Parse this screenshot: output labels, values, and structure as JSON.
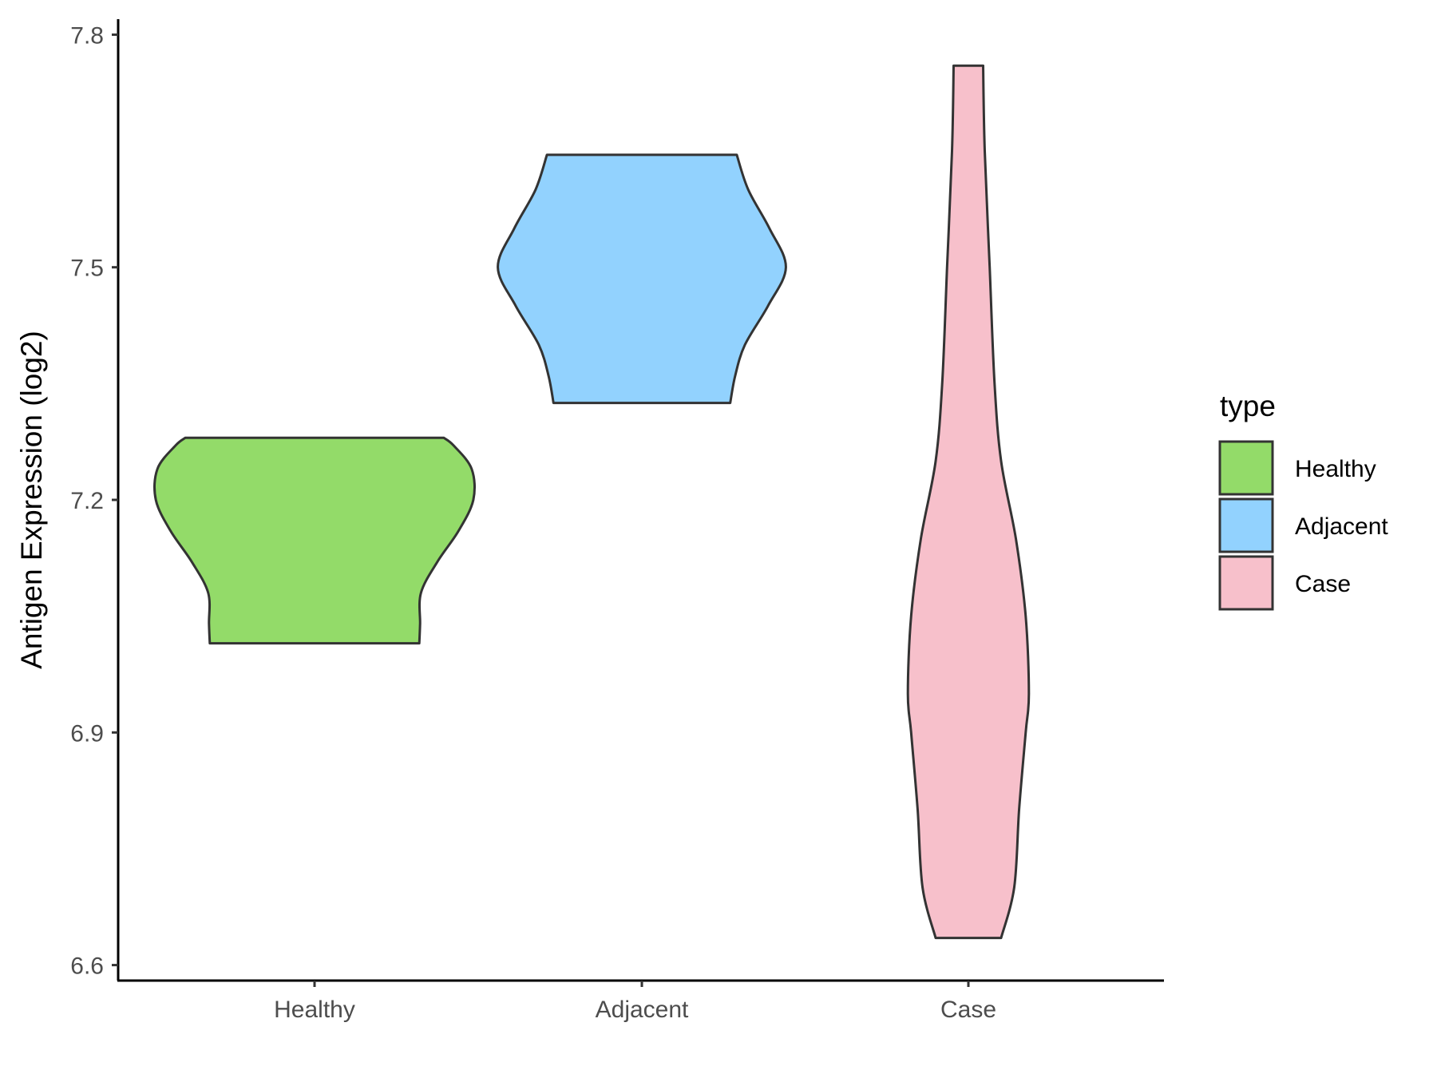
{
  "chart_data": {
    "type": "violin",
    "title": "",
    "xlabel": "",
    "ylabel": "Antigen Expression (log2)",
    "ylim": [
      6.58,
      7.82
    ],
    "yticks": [
      "6.6",
      "6.9",
      "7.2",
      "7.5",
      "7.8"
    ],
    "categories": [
      "Healthy",
      "Adjacent",
      "Case"
    ],
    "grid": false,
    "legend": {
      "title": "type",
      "position": "right",
      "entries": [
        "Healthy",
        "Adjacent",
        "Case"
      ]
    },
    "series": [
      {
        "category": "Healthy",
        "color": "#93DB69",
        "min": 7.015,
        "max": 7.28,
        "profile": [
          [
            7.015,
            0.64
          ],
          [
            7.04,
            0.645
          ],
          [
            7.08,
            0.65
          ],
          [
            7.12,
            0.75
          ],
          [
            7.16,
            0.88
          ],
          [
            7.2,
            0.97
          ],
          [
            7.24,
            0.96
          ],
          [
            7.27,
            0.85
          ],
          [
            7.28,
            0.79
          ]
        ]
      },
      {
        "category": "Adjacent",
        "color": "#92D2FE",
        "min": 7.325,
        "max": 7.645,
        "profile": [
          [
            7.325,
            0.54
          ],
          [
            7.36,
            0.57
          ],
          [
            7.4,
            0.63
          ],
          [
            7.45,
            0.77
          ],
          [
            7.5,
            0.88
          ],
          [
            7.55,
            0.78
          ],
          [
            7.6,
            0.65
          ],
          [
            7.645,
            0.58
          ]
        ]
      },
      {
        "category": "Case",
        "color": "#F7C0CB",
        "min": 6.635,
        "max": 7.76,
        "profile": [
          [
            6.635,
            0.2
          ],
          [
            6.7,
            0.28
          ],
          [
            6.8,
            0.31
          ],
          [
            6.9,
            0.35
          ],
          [
            6.95,
            0.37
          ],
          [
            7.05,
            0.35
          ],
          [
            7.15,
            0.29
          ],
          [
            7.25,
            0.2
          ],
          [
            7.35,
            0.16
          ],
          [
            7.5,
            0.13
          ],
          [
            7.65,
            0.1
          ],
          [
            7.76,
            0.09
          ]
        ]
      }
    ]
  }
}
